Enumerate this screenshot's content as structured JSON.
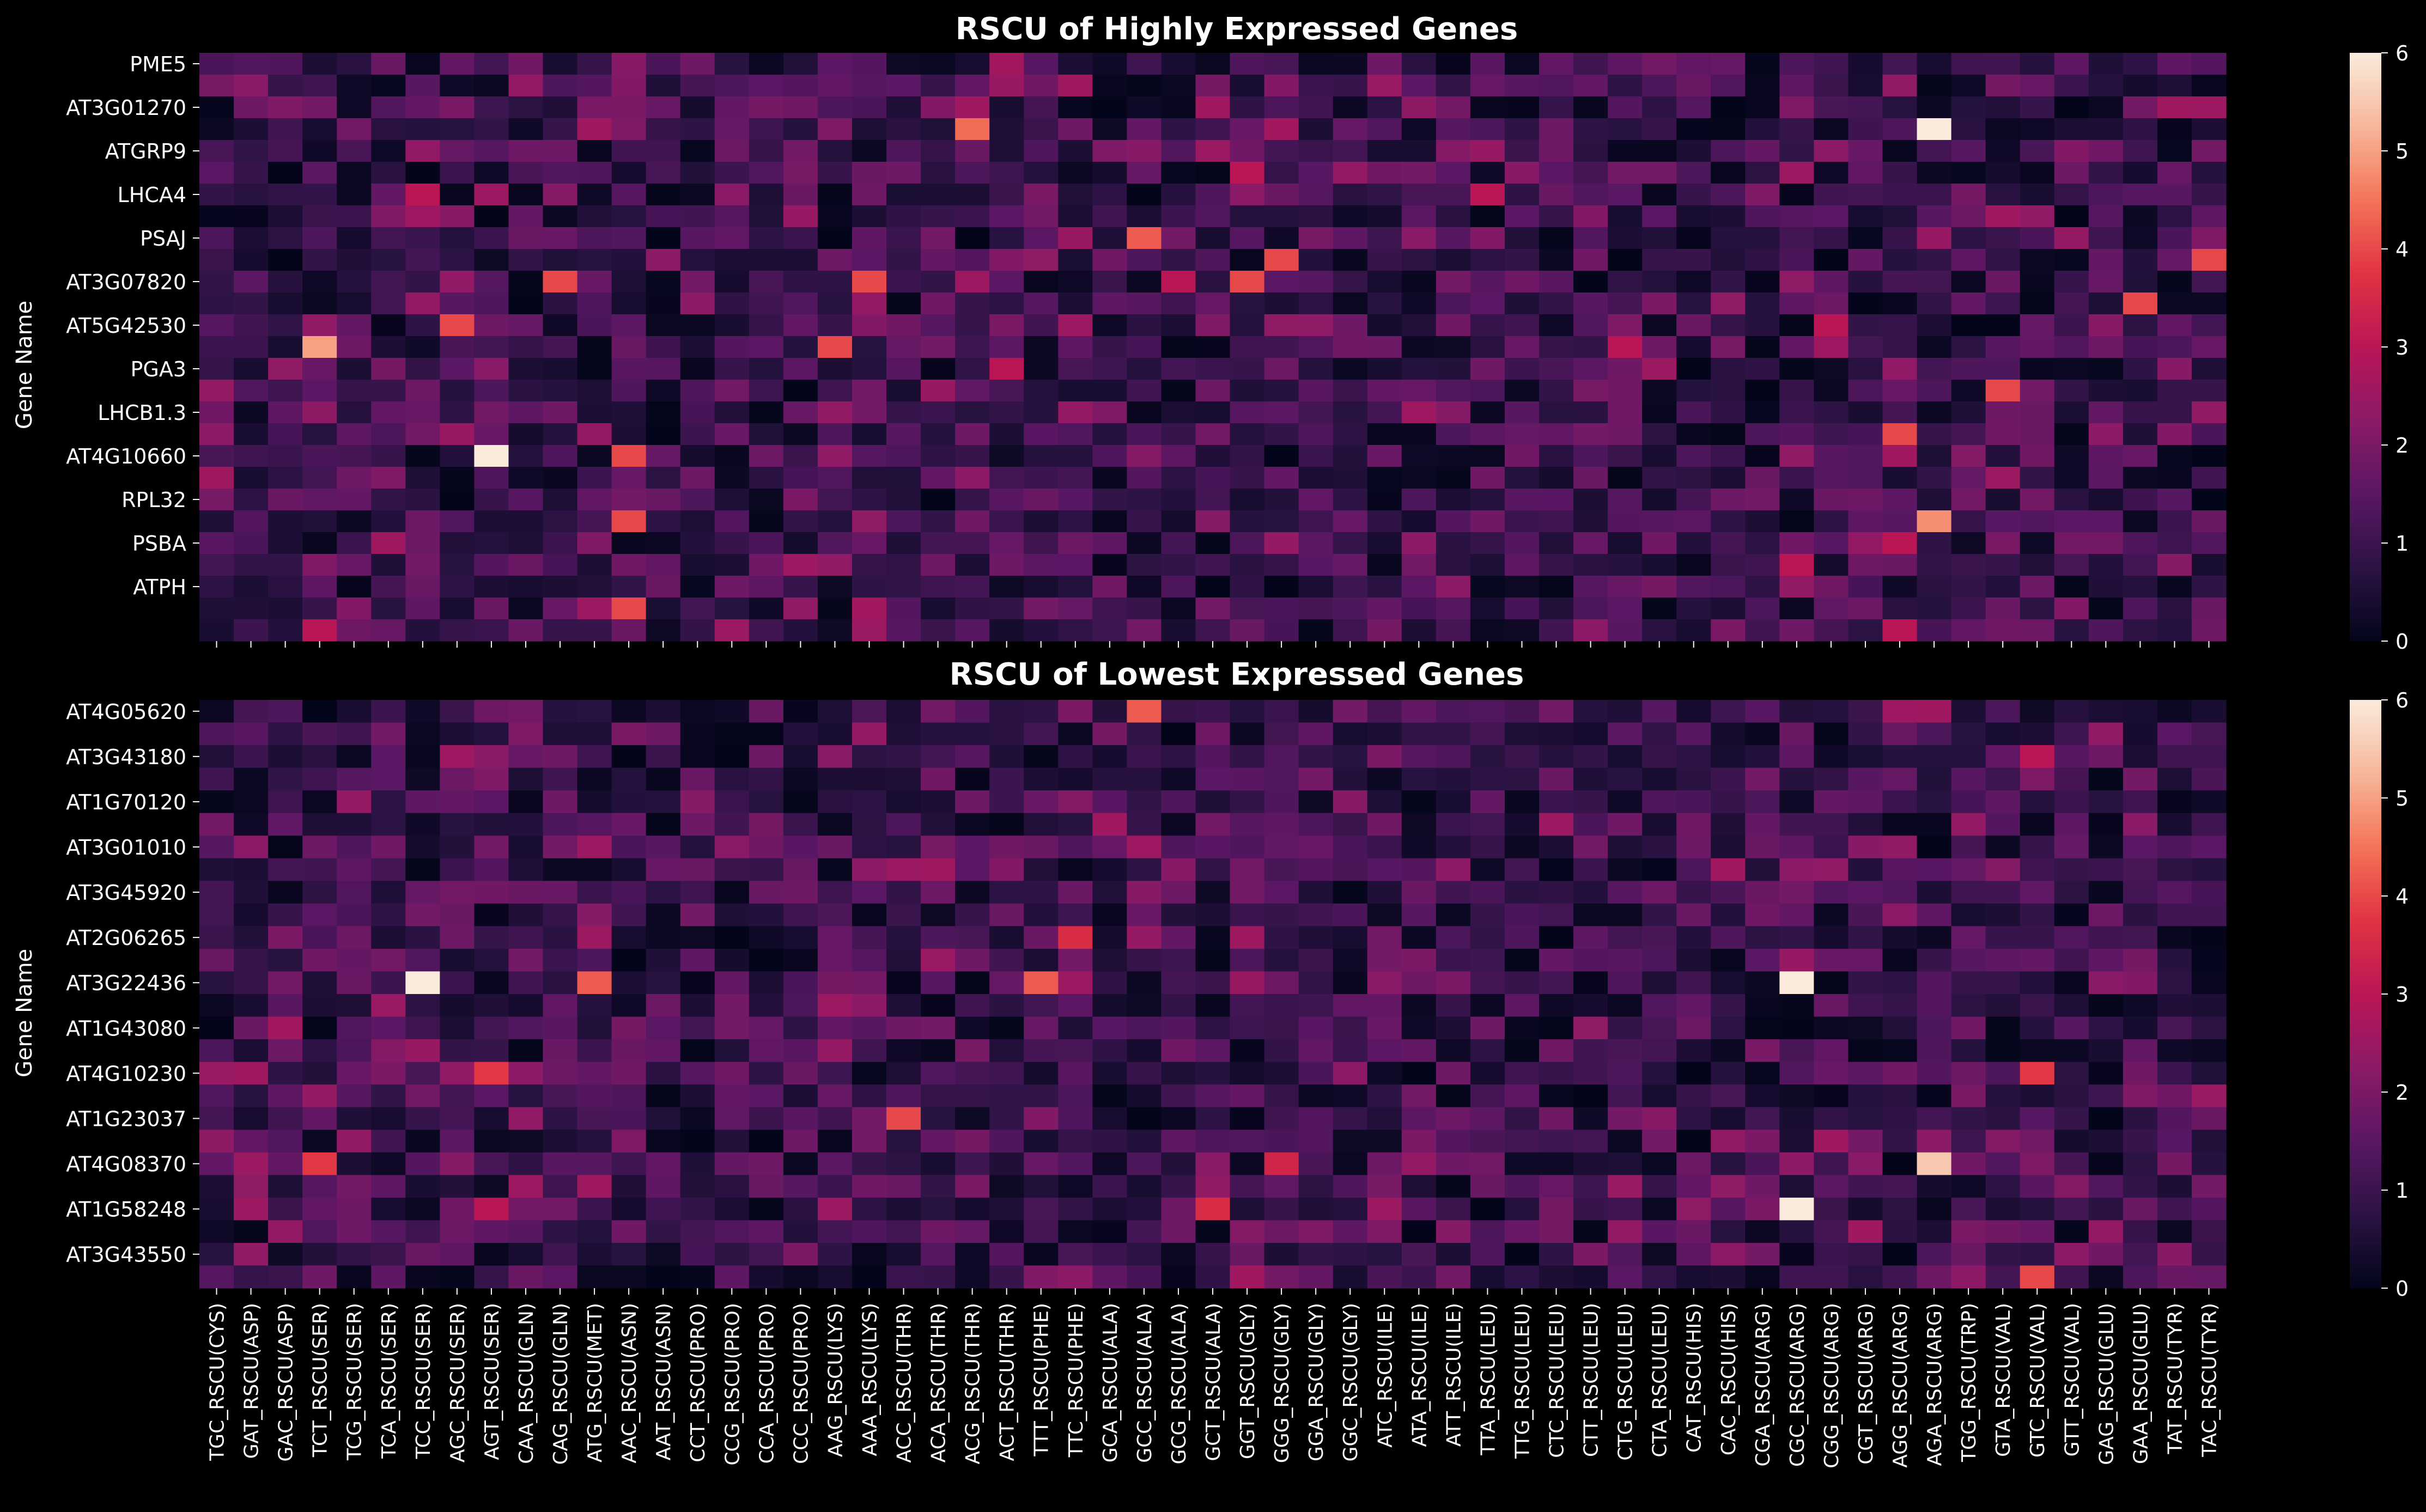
{
  "chart_data": [
    {
      "type": "heatmap",
      "title": "RSCU of Highly Expressed Genes",
      "ylabel": "Gene Name",
      "y_tick_labels": [
        "PME5",
        "AT3G01270",
        "ATGRP9",
        "LHCA4",
        "PSAJ",
        "AT3G07820",
        "AT5G42530",
        "PGA3",
        "LHCB1.3",
        "AT4G10660",
        "RPL32",
        "PSBA",
        "ATPH"
      ],
      "n_rows": 27,
      "colorbar": {
        "min": 0,
        "max": 6,
        "ticks": [
          "0",
          "1",
          "2",
          "3",
          "4",
          "5",
          "6"
        ]
      },
      "highlights": [
        {
          "row": 3,
          "col": 50,
          "value": 6.0
        },
        {
          "row": 18,
          "col": 8,
          "value": 6.0
        },
        {
          "row": 13,
          "col": 3,
          "value": 5.0
        },
        {
          "row": 21,
          "col": 50,
          "value": 4.8
        },
        {
          "row": 3,
          "col": 22,
          "value": 4.4
        },
        {
          "row": 12,
          "col": 7,
          "value": 4.0
        },
        {
          "row": 8,
          "col": 27,
          "value": 4.2
        },
        {
          "row": 10,
          "col": 30,
          "value": 4.0
        },
        {
          "row": 10,
          "col": 10,
          "value": 4.0
        },
        {
          "row": 9,
          "col": 31,
          "value": 4.0
        },
        {
          "row": 10,
          "col": 19,
          "value": 4.0
        },
        {
          "row": 13,
          "col": 18,
          "value": 4.0
        },
        {
          "row": 21,
          "col": 12,
          "value": 4.0
        },
        {
          "row": 25,
          "col": 12,
          "value": 4.0
        },
        {
          "row": 18,
          "col": 12,
          "value": 4.0
        },
        {
          "row": 17,
          "col": 49,
          "value": 4.0
        },
        {
          "row": 15,
          "col": 52,
          "value": 4.0
        },
        {
          "row": 11,
          "col": 56,
          "value": 4.0
        },
        {
          "row": 9,
          "col": 58,
          "value": 4.0
        },
        {
          "row": 13,
          "col": 41,
          "value": 3.0
        },
        {
          "row": 6,
          "col": 37,
          "value": 3.0
        },
        {
          "row": 6,
          "col": 6,
          "value": 3.0
        },
        {
          "row": 12,
          "col": 47,
          "value": 3.0
        },
        {
          "row": 23,
          "col": 46,
          "value": 3.0
        },
        {
          "row": 5,
          "col": 30,
          "value": 3.0
        },
        {
          "row": 26,
          "col": 49,
          "value": 3.0
        },
        {
          "row": 14,
          "col": 23,
          "value": 3.0
        },
        {
          "row": 10,
          "col": 28,
          "value": 3.0
        },
        {
          "row": 22,
          "col": 49,
          "value": 3.0
        },
        {
          "row": 26,
          "col": 3,
          "value": 3.0
        }
      ]
    },
    {
      "type": "heatmap",
      "title": "RSCU of Lowest Expressed Genes",
      "ylabel": "Gene Name",
      "y_tick_labels": [
        "AT4G05620",
        "AT3G43180",
        "AT1G70120",
        "AT3G01010",
        "AT3G45920",
        "AT2G06265",
        "AT3G22436",
        "AT1G43080",
        "AT4G10230",
        "AT1G23037",
        "AT4G08370",
        "AT1G58248",
        "AT3G43550"
      ],
      "n_rows": 26,
      "colorbar": {
        "min": 0,
        "max": 6,
        "ticks": [
          "0",
          "1",
          "2",
          "3",
          "4",
          "5",
          "6"
        ]
      },
      "highlights": [
        {
          "row": 12,
          "col": 6,
          "value": 6.0
        },
        {
          "row": 12,
          "col": 46,
          "value": 6.0
        },
        {
          "row": 22,
          "col": 46,
          "value": 6.0
        },
        {
          "row": 20,
          "col": 50,
          "value": 5.5
        },
        {
          "row": 12,
          "col": 11,
          "value": 4.2
        },
        {
          "row": 12,
          "col": 24,
          "value": 4.2
        },
        {
          "row": 0,
          "col": 27,
          "value": 4.2
        },
        {
          "row": 16,
          "col": 8,
          "value": 3.8
        },
        {
          "row": 18,
          "col": 20,
          "value": 4.0
        },
        {
          "row": 6,
          "col": 59,
          "value": 4.0
        },
        {
          "row": 20,
          "col": 3,
          "value": 3.8
        },
        {
          "row": 22,
          "col": 29,
          "value": 3.6
        },
        {
          "row": 10,
          "col": 25,
          "value": 3.6
        },
        {
          "row": 16,
          "col": 53,
          "value": 3.8
        },
        {
          "row": 25,
          "col": 53,
          "value": 4.0
        },
        {
          "row": 20,
          "col": 31,
          "value": 3.4
        },
        {
          "row": 2,
          "col": 53,
          "value": 3.0
        },
        {
          "row": 22,
          "col": 8,
          "value": 3.0
        }
      ]
    }
  ],
  "x_tick_labels": [
    "TGC_RSCU(CYS)",
    "GAT_RSCU(ASP)",
    "GAC_RSCU(ASP)",
    "TCT_RSCU(SER)",
    "TCG_RSCU(SER)",
    "TCA_RSCU(SER)",
    "TCC_RSCU(SER)",
    "AGC_RSCU(SER)",
    "AGT_RSCU(SER)",
    "CAA_RSCU(GLN)",
    "CAG_RSCU(GLN)",
    "ATG_RSCU(MET)",
    "AAC_RSCU(ASN)",
    "AAT_RSCU(ASN)",
    "CCT_RSCU(PRO)",
    "CCG_RSCU(PRO)",
    "CCA_RSCU(PRO)",
    "CCC_RSCU(PRO)",
    "AAG_RSCU(LYS)",
    "AAA_RSCU(LYS)",
    "ACC_RSCU(THR)",
    "ACA_RSCU(THR)",
    "ACG_RSCU(THR)",
    "ACT_RSCU(THR)",
    "TTT_RSCU(PHE)",
    "TTC_RSCU(PHE)",
    "GCA_RSCU(ALA)",
    "GCC_RSCU(ALA)",
    "GCG_RSCU(ALA)",
    "GCT_RSCU(ALA)",
    "GGT_RSCU(GLY)",
    "GGG_RSCU(GLY)",
    "GGA_RSCU(GLY)",
    "GGC_RSCU(GLY)",
    "ATC_RSCU(ILE)",
    "ATA_RSCU(ILE)",
    "ATT_RSCU(ILE)",
    "TTA_RSCU(LEU)",
    "TTG_RSCU(LEU)",
    "CTC_RSCU(LEU)",
    "CTT_RSCU(LEU)",
    "CTG_RSCU(LEU)",
    "CTA_RSCU(LEU)",
    "CAT_RSCU(HIS)",
    "CAC_RSCU(HIS)",
    "CGA_RSCU(ARG)",
    "CGC_RSCU(ARG)",
    "CGG_RSCU(ARG)",
    "CGT_RSCU(ARG)",
    "AGG_RSCU(ARG)",
    "AGA_RSCU(ARG)",
    "TGG_RSCU(TRP)",
    "GTA_RSCU(VAL)",
    "GTC_RSCU(VAL)",
    "GTT_RSCU(VAL)",
    "GAG_RSCU(GLU)",
    "GAA_RSCU(GLU)",
    "TAT_RSCU(TYR)",
    "TAC_RSCU(TYR)"
  ],
  "colors": {
    "background": "#000000",
    "text": "#ffffff",
    "colormap": [
      "#03051a",
      "#2b1344",
      "#5a1763",
      "#8b1a67",
      "#ba1656",
      "#e13342",
      "#f47459",
      "#f7b79a",
      "#faebdd"
    ]
  }
}
